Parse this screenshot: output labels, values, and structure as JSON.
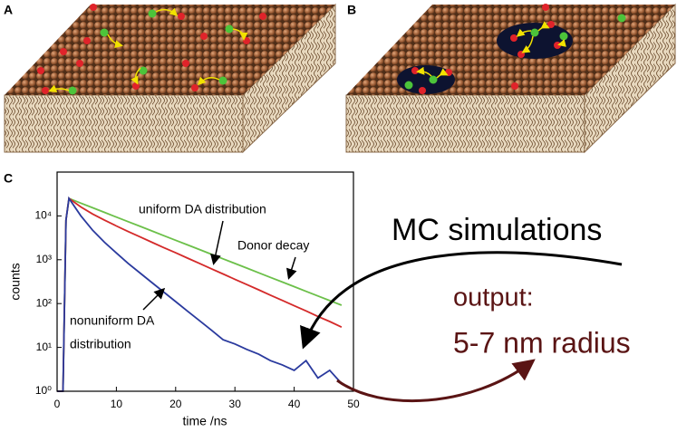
{
  "panel_labels": [
    "A",
    "B",
    "C"
  ],
  "chart_data": {
    "type": "line",
    "xlabel": "time /ns",
    "ylabel": "counts",
    "log_y": true,
    "x": [
      0,
      1,
      1.5,
      2,
      4,
      6,
      8,
      10,
      12,
      14,
      16,
      18,
      20,
      22,
      24,
      26,
      28,
      30,
      32,
      34,
      36,
      38,
      40,
      42,
      44,
      46,
      48
    ],
    "series": [
      {
        "name": "Donor decay",
        "color": "#6cc04a",
        "values": [
          1,
          1,
          8000,
          25000,
          19580,
          15350,
          12020,
          9420,
          7380,
          5790,
          4530,
          3550,
          2780,
          2180,
          1710,
          1340,
          1050,
          822,
          644,
          505,
          396,
          310,
          243,
          190,
          149,
          117,
          92
        ]
      },
      {
        "name": "uniform DA distribution",
        "color": "#d42a2a",
        "values": [
          1,
          1,
          8000,
          25000,
          16000,
          11070,
          7980,
          5890,
          4400,
          3310,
          2510,
          1890,
          1440,
          1090,
          825,
          625,
          473,
          358,
          271,
          206,
          156,
          118,
          89,
          68,
          51,
          39,
          29
        ]
      },
      {
        "name": "nonuniform DA distribution",
        "color": "#2a3a9e",
        "values": [
          1,
          1,
          8000,
          25000,
          10030,
          4720,
          2510,
          1430,
          821,
          498,
          302,
          183,
          111,
          67,
          41,
          25,
          15,
          12,
          9,
          7,
          5,
          4,
          3,
          5,
          2,
          3,
          1.5
        ]
      }
    ],
    "xlim": [
      0,
      50
    ],
    "xticks": [
      0,
      10,
      20,
      30,
      40,
      50
    ],
    "ylim": [
      1,
      100000
    ],
    "yticks": [
      {
        "value": 1,
        "label": "10⁰"
      },
      {
        "value": 10,
        "label": "10¹"
      },
      {
        "value": 100,
        "label": "10²"
      },
      {
        "value": 1000,
        "label": "10³"
      },
      {
        "value": 10000,
        "label": "10⁴"
      }
    ],
    "annotations": [
      "uniform DA distribution",
      "Donor decay",
      "nonuniform DA",
      "distribution"
    ]
  },
  "side_text": {
    "title": "MC simulations",
    "output_label": "output:",
    "output_value": "5-7 nm radius"
  }
}
